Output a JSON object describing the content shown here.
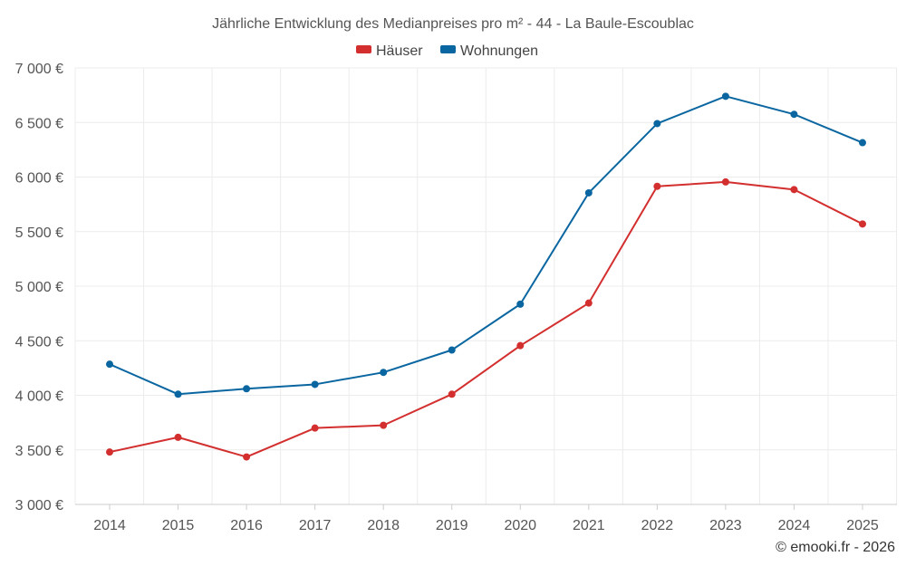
{
  "chart_data": {
    "type": "line",
    "title": "Jährliche Entwicklung des Medianpreises pro m² - 44 - La Baule-Escoublac",
    "categories": [
      "2014",
      "2015",
      "2016",
      "2017",
      "2018",
      "2019",
      "2020",
      "2021",
      "2022",
      "2023",
      "2024",
      "2025"
    ],
    "series": [
      {
        "name": "Häuser",
        "color": "#d32f2f",
        "values": [
          3480,
          3615,
          3435,
          3700,
          3725,
          4010,
          4455,
          4845,
          5915,
          5955,
          5885,
          5570
        ]
      },
      {
        "name": "Wohnungen",
        "color": "#0a66a0",
        "values": [
          4285,
          4010,
          4060,
          4100,
          4210,
          4415,
          4835,
          5855,
          6490,
          6740,
          6575,
          6315
        ]
      }
    ],
    "ylim": [
      3000,
      7000
    ],
    "yticks": [
      3000,
      3500,
      4000,
      4500,
      5000,
      5500,
      6000,
      6500,
      7000
    ],
    "ytick_labels": [
      "3 000 €",
      "3 500 €",
      "4 000 €",
      "4 500 €",
      "5 000 €",
      "5 500 €",
      "6 000 €",
      "6 500 €",
      "7 000 €"
    ],
    "xlabel": "",
    "ylabel": "",
    "grid": true,
    "legend_position": "top-center"
  },
  "credit": "© emooki.fr - 2026"
}
